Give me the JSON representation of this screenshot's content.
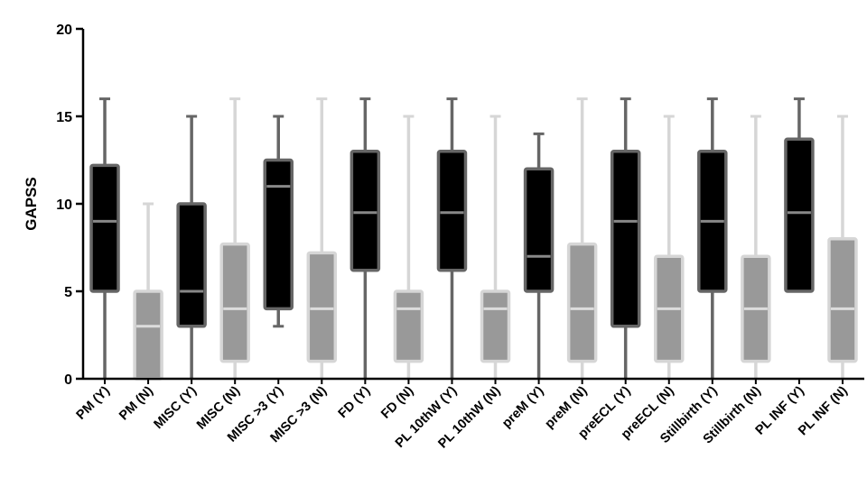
{
  "chart_data": {
    "type": "boxplot",
    "ylabel": "GAPSS",
    "ylim": [
      0,
      20
    ],
    "yticks": [
      0,
      5,
      10,
      15,
      20
    ],
    "categories": [
      "PM (Y)",
      "PM (N)",
      "MISC (Y)",
      "MISC (N)",
      "MISC >3 (Y)",
      "MISC >3 (N)",
      "FD (Y)",
      "FD (N)",
      "PL 10thW (Y)",
      "PL 10thW (N)",
      "preM (Y)",
      "preM (N)",
      "preECL (Y)",
      "preECL (N)",
      "Stillbirth (Y)",
      "Stillbirth (N)",
      "PL INF (Y)",
      "PL INF (N)"
    ],
    "boxes": [
      {
        "min": 0,
        "q1": 5,
        "median": 9,
        "q3": 12.2,
        "max": 16,
        "group": "Y"
      },
      {
        "min": 0,
        "q1": 0,
        "median": 3,
        "q3": 5,
        "max": 10,
        "group": "N"
      },
      {
        "min": 0,
        "q1": 3,
        "median": 5,
        "q3": 10,
        "max": 15,
        "group": "Y"
      },
      {
        "min": 0,
        "q1": 1,
        "median": 4,
        "q3": 7.7,
        "max": 16,
        "group": "N"
      },
      {
        "min": 3,
        "q1": 4,
        "median": 11,
        "q3": 12.5,
        "max": 15,
        "group": "Y"
      },
      {
        "min": 0,
        "q1": 1,
        "median": 4,
        "q3": 7.2,
        "max": 16,
        "group": "N"
      },
      {
        "min": 0,
        "q1": 6.2,
        "median": 9.5,
        "q3": 13,
        "max": 16,
        "group": "Y"
      },
      {
        "min": 0,
        "q1": 1,
        "median": 4,
        "q3": 5,
        "max": 15,
        "group": "N"
      },
      {
        "min": 0,
        "q1": 6.2,
        "median": 9.5,
        "q3": 13,
        "max": 16,
        "group": "Y"
      },
      {
        "min": 0,
        "q1": 1,
        "median": 4,
        "q3": 5,
        "max": 15,
        "group": "N"
      },
      {
        "min": 0,
        "q1": 5,
        "median": 7,
        "q3": 12,
        "max": 14,
        "group": "Y"
      },
      {
        "min": 0,
        "q1": 1,
        "median": 4,
        "q3": 7.7,
        "max": 16,
        "group": "N"
      },
      {
        "min": 0,
        "q1": 3,
        "median": 9,
        "q3": 13,
        "max": 16,
        "group": "Y"
      },
      {
        "min": 0,
        "q1": 1,
        "median": 4,
        "q3": 7,
        "max": 15,
        "group": "N"
      },
      {
        "min": 0,
        "q1": 5,
        "median": 9,
        "q3": 13,
        "max": 16,
        "group": "Y"
      },
      {
        "min": 0,
        "q1": 1,
        "median": 4,
        "q3": 7,
        "max": 15,
        "group": "N"
      },
      {
        "min": 5,
        "q1": 5,
        "median": 9.5,
        "q3": 13.7,
        "max": 16,
        "group": "Y"
      },
      {
        "min": 0,
        "q1": 1,
        "median": 4,
        "q3": 8,
        "max": 15,
        "group": "N"
      }
    ],
    "colors": {
      "Y": {
        "fill": "#000000",
        "stroke": "#666666",
        "whisker": "#666666",
        "median": "#888888"
      },
      "N": {
        "fill": "#999999",
        "stroke": "#d6d6d6",
        "whisker": "#d6d6d6",
        "median": "#dddddd"
      }
    },
    "grid": false,
    "legend": "none"
  }
}
